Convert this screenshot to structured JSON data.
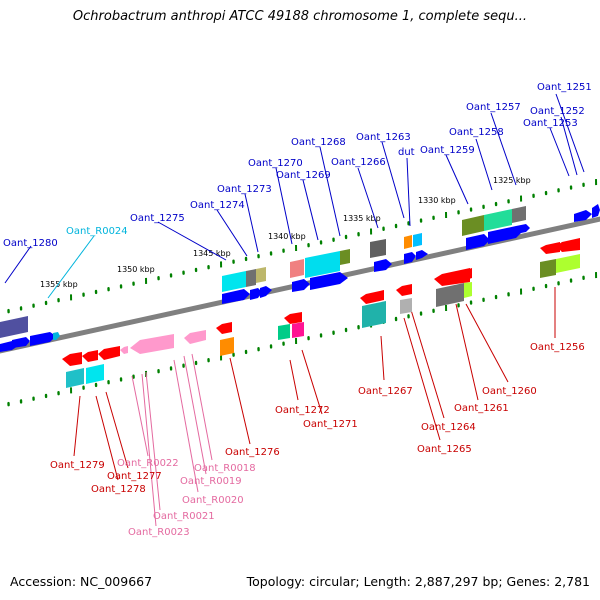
{
  "title": "Ochrobactrum anthropi ATCC 49188 chromosome 1, complete sequ...",
  "footer": {
    "accession": "Accession: NC_009667",
    "topology": "Topology: circular; Length: 2,887,297 bp; Genes: 2,781"
  },
  "colors": {
    "plus_label": "#0000c8",
    "minus_label": "#c80000",
    "rna_plus_label": "#00b4dc",
    "rna_minus_label": "#e46aa0",
    "axis": "#808080",
    "tick": "#008000"
  },
  "scale_labels": [
    "1325 kbp",
    "1330 kbp",
    "1335 kbp",
    "1340 kbp",
    "1345 kbp",
    "1350 kbp",
    "1355 kbp"
  ],
  "plus_genes": [
    "Oant_1251",
    "Oant_1252",
    "Oant_1253",
    "Oant_1257",
    "Oant_1258",
    "Oant_1259",
    "dut",
    "Oant_1263",
    "Oant_1266",
    "Oant_1268",
    "Oant_1269",
    "Oant_1270",
    "Oant_1273",
    "Oant_1274",
    "Oant_1275",
    "Oant_1280",
    "Oant_R0024"
  ],
  "minus_genes": [
    "Oant_1256",
    "Oant_1260",
    "Oant_1261",
    "Oant_1264",
    "Oant_1265",
    "Oant_1267",
    "Oant_1271",
    "Oant_1272",
    "Oant_1276",
    "Oant_1277",
    "Oant_1278",
    "Oant_1279",
    "Oant_R0018",
    "Oant_R0019",
    "Oant_R0020",
    "Oant_R0021",
    "Oant_R0022",
    "Oant_R0023"
  ]
}
